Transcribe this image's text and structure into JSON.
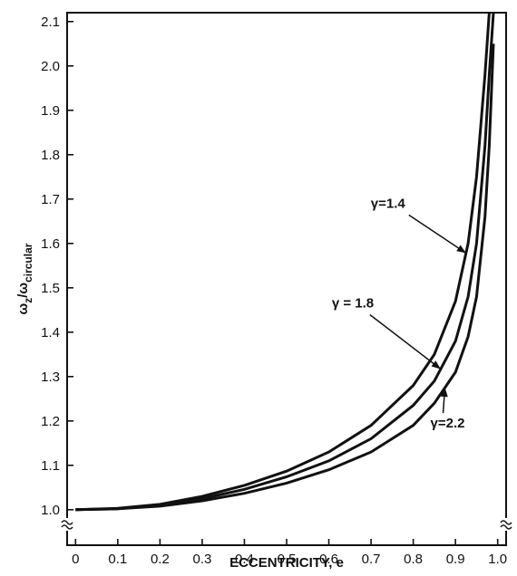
{
  "chart_data": {
    "type": "line",
    "xlabel": "ECCENTRICITY,  e",
    "ylabel_main": "ω",
    "ylabel_sub1": "z",
    "ylabel_slash": "/ω",
    "ylabel_sub2": "circular",
    "xlim": [
      -0.02,
      1.02
    ],
    "ylim": [
      0.92,
      2.12
    ],
    "x_ticks": [
      "0",
      "0.1",
      "0.2",
      "0.3",
      "0.4",
      "0.5",
      "0.6",
      "0.7",
      "0.8",
      "0.9",
      "1.0"
    ],
    "x_tick_values": [
      0,
      0.1,
      0.2,
      0.3,
      0.4,
      0.5,
      0.6,
      0.7,
      0.8,
      0.9,
      1.0
    ],
    "y_ticks": [
      "1.0",
      "1.1",
      "1.2",
      "1.3",
      "1.4",
      "1.5",
      "1.6",
      "1.7",
      "1.8",
      "1.9",
      "2.0",
      "2.1"
    ],
    "y_tick_values": [
      1.0,
      1.1,
      1.2,
      1.3,
      1.4,
      1.5,
      1.6,
      1.7,
      1.8,
      1.9,
      2.0,
      2.1
    ],
    "axis_break": "≈",
    "grid": false,
    "series": [
      {
        "name": "γ=1.4",
        "x": [
          0,
          0.1,
          0.2,
          0.3,
          0.4,
          0.5,
          0.6,
          0.7,
          0.8,
          0.85,
          0.9,
          0.93,
          0.95,
          0.97,
          0.98
        ],
        "y": [
          1.0,
          1.003,
          1.012,
          1.03,
          1.055,
          1.087,
          1.13,
          1.19,
          1.28,
          1.35,
          1.47,
          1.6,
          1.75,
          1.98,
          2.12
        ]
      },
      {
        "name": "γ = 1.8",
        "x": [
          0,
          0.1,
          0.2,
          0.3,
          0.4,
          0.5,
          0.6,
          0.7,
          0.8,
          0.85,
          0.9,
          0.93,
          0.95,
          0.97,
          0.98,
          0.99
        ],
        "y": [
          1.0,
          1.002,
          1.01,
          1.025,
          1.046,
          1.074,
          1.11,
          1.16,
          1.235,
          1.29,
          1.38,
          1.48,
          1.6,
          1.82,
          1.98,
          2.12
        ]
      },
      {
        "name": "γ=2.2",
        "x": [
          0,
          0.1,
          0.2,
          0.3,
          0.4,
          0.5,
          0.6,
          0.7,
          0.8,
          0.85,
          0.9,
          0.93,
          0.95,
          0.97,
          0.98,
          0.99
        ],
        "y": [
          1.0,
          1.002,
          1.008,
          1.02,
          1.037,
          1.06,
          1.09,
          1.13,
          1.19,
          1.24,
          1.31,
          1.39,
          1.48,
          1.66,
          1.82,
          2.05
        ]
      }
    ],
    "annotations": [
      {
        "text": "γ=1.4",
        "series": 0,
        "x_at": 0.925
      },
      {
        "text": "γ = 1.8",
        "series": 1,
        "x_at": 0.865
      },
      {
        "text": "γ=2.2",
        "series": 2,
        "x_at": 0.875
      }
    ]
  }
}
